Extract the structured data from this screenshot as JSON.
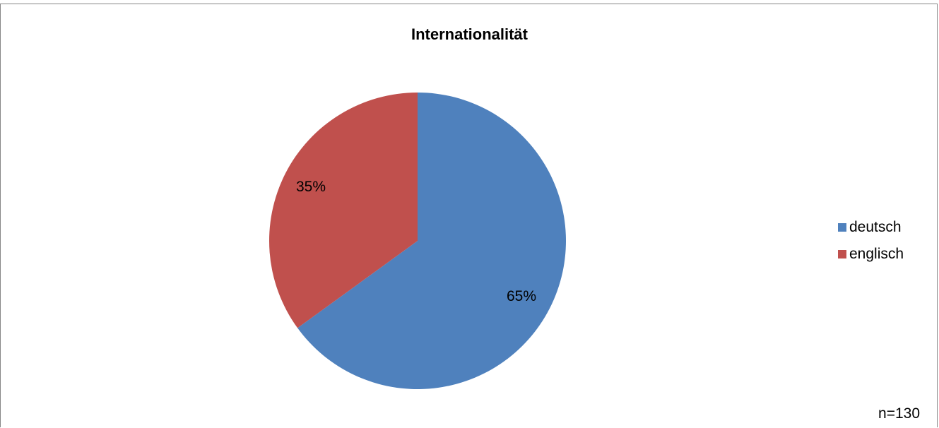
{
  "chart_data": {
    "type": "pie",
    "title": "Internationalität",
    "slices": [
      {
        "label": "deutsch",
        "value": 65,
        "display": "65%",
        "color": "#4F81BD"
      },
      {
        "label": "englisch",
        "value": 35,
        "display": "35%",
        "color": "#C0504D"
      }
    ],
    "legend": [
      "deutsch",
      "englisch"
    ],
    "legend_position": "right",
    "annotation": "n=130"
  }
}
